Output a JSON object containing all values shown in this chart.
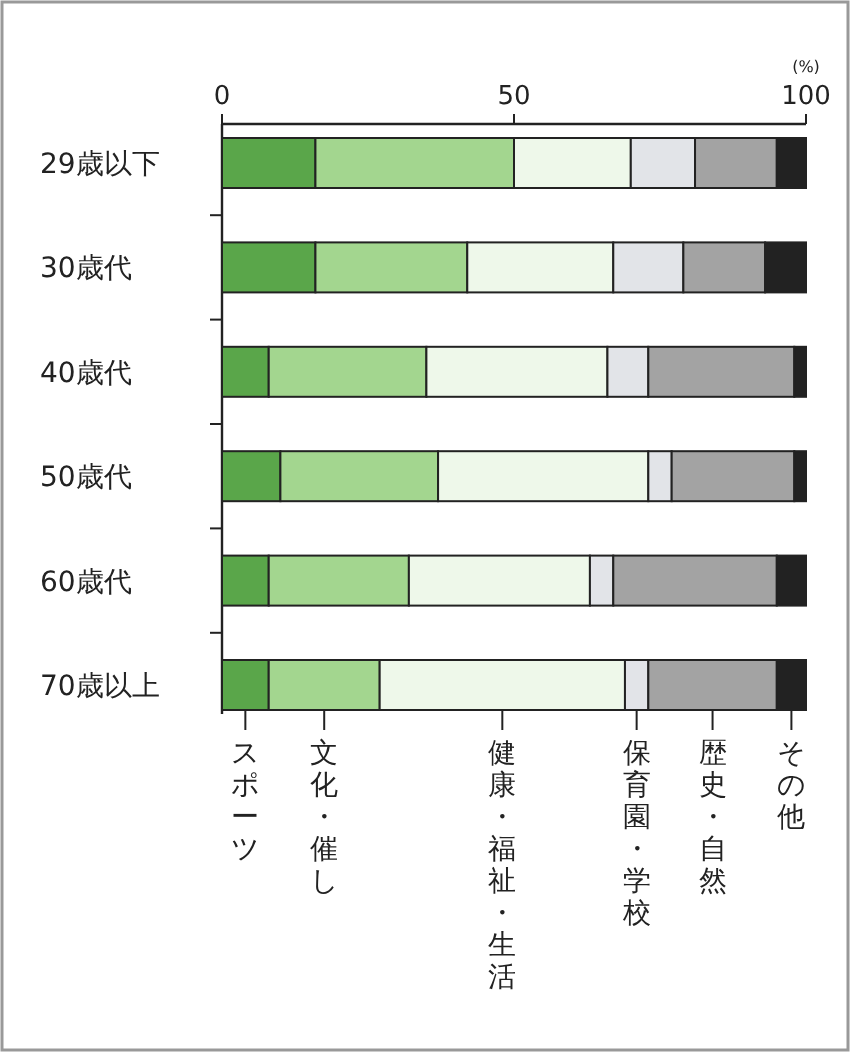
{
  "chart_data": {
    "type": "bar",
    "orientation": "horizontal",
    "stacked": true,
    "xlabel": "(%)",
    "categories": [
      "29歳以下",
      "30歳代",
      "40歳代",
      "50歳代",
      "60歳代",
      "70歳以上"
    ],
    "xlim": [
      0,
      100
    ],
    "xticks": [
      0,
      50,
      100
    ],
    "legend": "bottom",
    "grid": false,
    "series": [
      {
        "name": "スポーツ",
        "color": "#5aa64a",
        "values": [
          16,
          16,
          8,
          10,
          8,
          8
        ]
      },
      {
        "name": "文化・催し",
        "color": "#a3d68f",
        "values": [
          34,
          26,
          27,
          27,
          24,
          19
        ]
      },
      {
        "name": "健康・福祉・生活",
        "color": "#eef8ea",
        "values": [
          20,
          25,
          31,
          36,
          31,
          42
        ]
      },
      {
        "name": "保育園・学校",
        "color": "#e2e4e8",
        "values": [
          11,
          12,
          7,
          4,
          4,
          4
        ]
      },
      {
        "name": "歴史・自然",
        "color": "#a3a3a3",
        "values": [
          14,
          14,
          25,
          21,
          28,
          22
        ]
      },
      {
        "name": "その他",
        "color": "#222222",
        "values": [
          5,
          7,
          2,
          2,
          5,
          5
        ]
      }
    ]
  }
}
